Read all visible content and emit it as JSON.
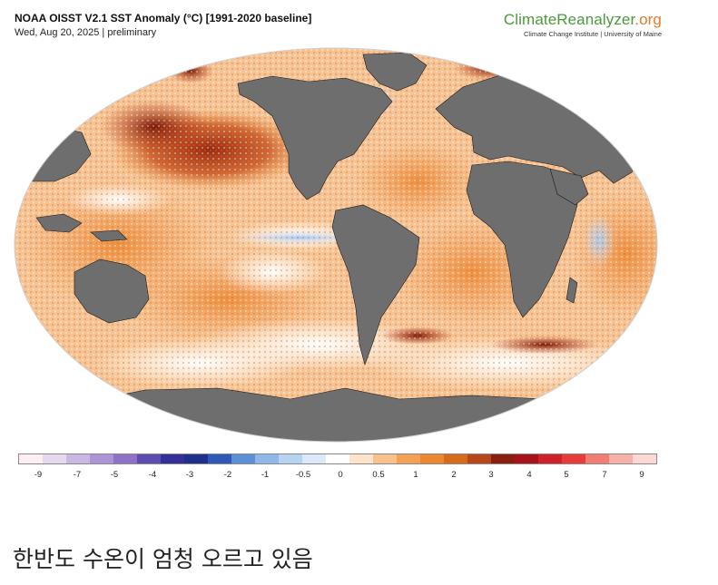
{
  "header": {
    "title": "NOAA OISST V2.1 SST Anomaly (°C) [1991-2020 baseline]",
    "subtitle": "Wed, Aug 20, 2025 | preliminary"
  },
  "brand": {
    "logo_main": "ClimateReanalyzer",
    "logo_suffix": ".org",
    "tagline": "Climate Change Institute | University of Maine"
  },
  "legend": {
    "colors": [
      "#fdeef3",
      "#e6d8ef",
      "#cbb7e3",
      "#ae93d6",
      "#8d72c8",
      "#5e4db0",
      "#34309a",
      "#1f2f8c",
      "#2f59b8",
      "#5b8fd6",
      "#8db8e8",
      "#b7d3f2",
      "#dbe9f8",
      "#ffffff",
      "#fde3c9",
      "#f9c08b",
      "#f4a055",
      "#ec8730",
      "#d86a1c",
      "#b9461a",
      "#8b1f0d",
      "#a8121a",
      "#d0202a",
      "#ea3b3b",
      "#f27d72",
      "#f7b0a8",
      "#fbd8d2"
    ],
    "tick_labels": [
      "-9",
      "-7",
      "-5",
      "-4",
      "-3",
      "-2",
      "-1",
      "-0.5",
      "0",
      "0.5",
      "1",
      "2",
      "3",
      "4",
      "5",
      "7",
      "9"
    ]
  },
  "caption": "한반도 수온이 엄청 오르고 있음"
}
